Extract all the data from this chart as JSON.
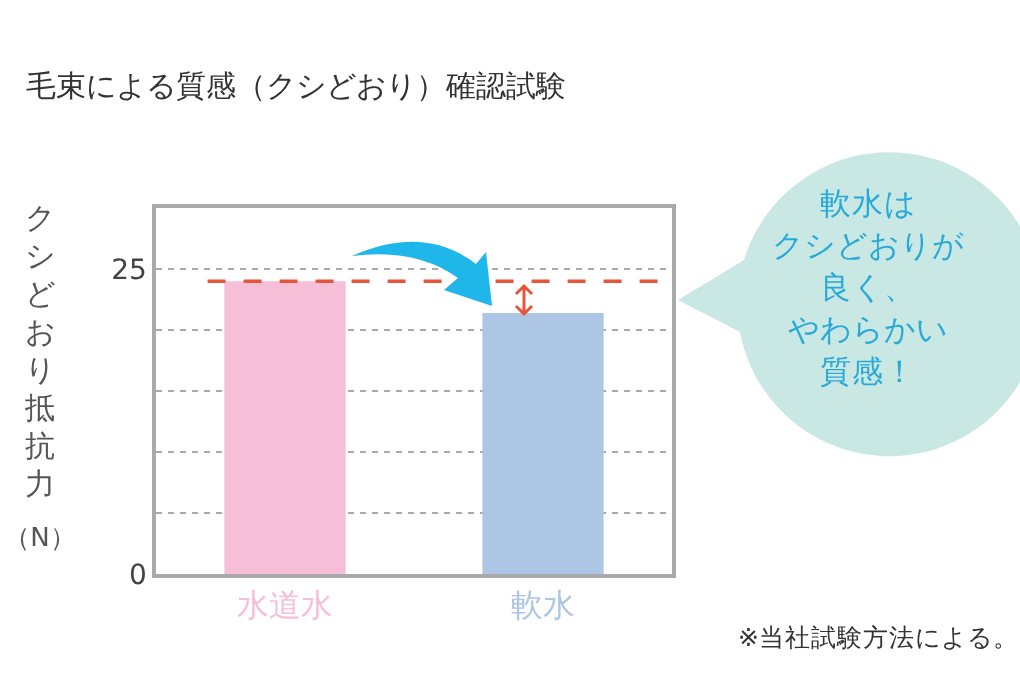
{
  "chart_data": {
    "type": "bar",
    "title": "毛束による質感（クシどおり）確認試験",
    "ylabel": "クシどおり抵抗力（N）",
    "categories": [
      "水道水",
      "軟水"
    ],
    "values": [
      24,
      21.4
    ],
    "colors": [
      "#f6bfd7",
      "#adc6e6"
    ],
    "ylim": [
      0,
      30
    ],
    "yticks": [
      0,
      {
        "value": 5,
        "label": null
      },
      {
        "value": 10,
        "label": null
      },
      {
        "value": 15,
        "label": null
      },
      {
        "value": 20,
        "label": null
      },
      25
    ],
    "grid": "y",
    "ref_lines": [
      {
        "axis": "y",
        "value": 24,
        "color": "#e8553a",
        "line_style": "dashed"
      }
    ],
    "annotations": [
      "軟水は",
      "クシどおりが",
      "良く、",
      "やわらかい",
      "質感！",
      "※当社試験方法による。"
    ]
  }
}
